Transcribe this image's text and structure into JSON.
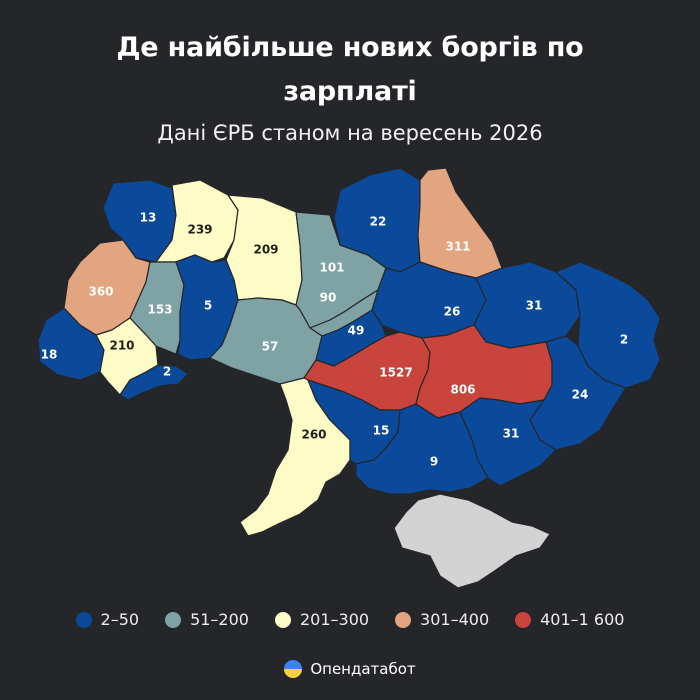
{
  "title_line1": "Де найбільше нових боргів по",
  "title_line2": "зарплаті",
  "subtitle": "Дані ЄРБ станом на вересень 2026",
  "colors": {
    "c1": "#0b4a9a",
    "c2": "#7fa2a4",
    "c3": "#fdfbc6",
    "c4": "#e3a480",
    "c5": "#c8443c",
    "nodata": "#d3d3d3",
    "background": "#25262a"
  },
  "legend": [
    {
      "label": "2–50",
      "color": "#0b4a9a"
    },
    {
      "label": "51–200",
      "color": "#7fa2a4"
    },
    {
      "label": "201–300",
      "color": "#fdfbc6"
    },
    {
      "label": "301–400",
      "color": "#e3a480"
    },
    {
      "label": "401–1 600",
      "color": "#c8443c"
    }
  ],
  "regions": [
    {
      "value": "13",
      "category": "c1"
    },
    {
      "value": "239",
      "category": "c3"
    },
    {
      "value": "209",
      "category": "c3"
    },
    {
      "value": "101",
      "category": "c2"
    },
    {
      "value": "22",
      "category": "c1"
    },
    {
      "value": "311",
      "category": "c4"
    },
    {
      "value": "360",
      "category": "c4"
    },
    {
      "value": "153",
      "category": "c2"
    },
    {
      "value": "5",
      "category": "c1"
    },
    {
      "value": "90",
      "category": "c2"
    },
    {
      "value": "26",
      "category": "c1"
    },
    {
      "value": "31",
      "category": "c1"
    },
    {
      "value": "2",
      "category": "c1"
    },
    {
      "value": "18",
      "category": "c1"
    },
    {
      "value": "210",
      "category": "c3"
    },
    {
      "value": "2",
      "category": "c1"
    },
    {
      "value": "57",
      "category": "c2"
    },
    {
      "value": "49",
      "category": "c1"
    },
    {
      "value": "1527",
      "category": "c5"
    },
    {
      "value": "806",
      "category": "c5"
    },
    {
      "value": "24",
      "category": "c1"
    },
    {
      "value": "260",
      "category": "c3"
    },
    {
      "value": "15",
      "category": "c1"
    },
    {
      "value": "31",
      "category": "c1"
    },
    {
      "value": "9",
      "category": "c1"
    }
  ],
  "brand": "Опендатабот"
}
